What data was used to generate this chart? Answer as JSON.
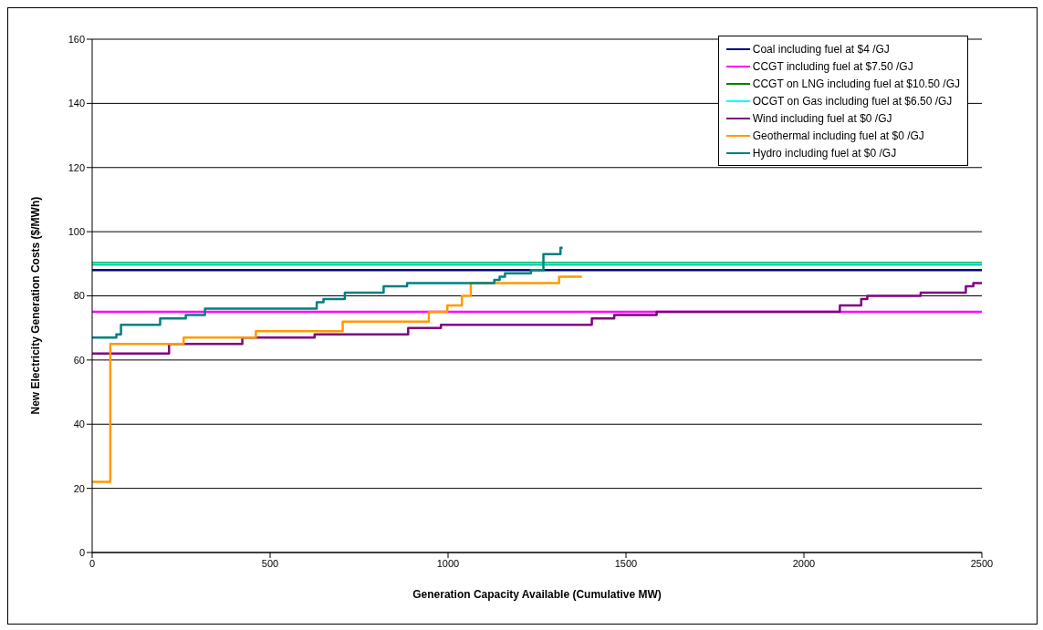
{
  "chart_data": {
    "type": "step",
    "xlabel": "Generation Capacity Available (Cumulative MW)",
    "ylabel": "New Electricity Generation Costs ($/MWh)",
    "xlim": [
      0,
      2500
    ],
    "xticks": [
      0,
      500,
      1000,
      1500,
      2000,
      2500
    ],
    "ylim": [
      0,
      160
    ],
    "yticks": [
      0,
      20,
      40,
      60,
      80,
      100,
      120,
      140,
      160
    ],
    "grid": "y",
    "legend": "top right",
    "marker": "none",
    "line_style": "solid",
    "series": [
      {
        "name": "Coal including fuel at $4 /GJ",
        "color": "#000080",
        "x": [
          0,
          2500
        ],
        "values": [
          88,
          88
        ]
      },
      {
        "name": "CCGT including fuel at $7.50 /GJ",
        "color": "#ff00ff",
        "x": [
          0,
          2500
        ],
        "values": [
          75,
          75
        ]
      },
      {
        "name": "CCGT on LNG including fuel at $10.50 /GJ",
        "color": "#008000",
        "x": [
          0,
          2500
        ],
        "values": [
          90,
          90
        ]
      },
      {
        "name": "OCGT on Gas including fuel at $6.50 /GJ",
        "color": "#00ffff",
        "x": [
          0,
          2500
        ],
        "values": [
          90,
          90
        ]
      },
      {
        "name": "Wind including fuel at $0 /GJ",
        "color": "#800080",
        "x": [
          0,
          216,
          422,
          625,
          888,
          980,
          1404,
          1467,
          1586,
          2101,
          2161,
          2178,
          2328,
          2455,
          2476,
          2500
        ],
        "values": [
          62,
          65,
          67,
          68,
          70,
          71,
          73,
          74,
          75,
          77,
          79,
          80,
          81,
          83,
          84,
          84
        ]
      },
      {
        "name": "Geothermal including fuel at $0 /GJ",
        "color": "#ff9900",
        "x": [
          0,
          51,
          257,
          460,
          704,
          946,
          998,
          1039,
          1064,
          1312,
          1376
        ],
        "values": [
          22,
          65,
          67,
          69,
          72,
          75,
          77,
          80,
          84,
          86,
          86
        ]
      },
      {
        "name": "Hydro including fuel at $0 /GJ",
        "color": "#008080",
        "x": [
          0,
          68,
          81,
          191,
          263,
          317,
          631,
          650,
          710,
          819,
          885,
          1130,
          1145,
          1160,
          1233,
          1268,
          1316,
          1322
        ],
        "values": [
          67,
          68,
          71,
          73,
          74,
          76,
          78,
          79,
          81,
          83,
          84,
          85,
          86,
          87,
          88,
          93,
          95,
          95
        ]
      }
    ]
  }
}
